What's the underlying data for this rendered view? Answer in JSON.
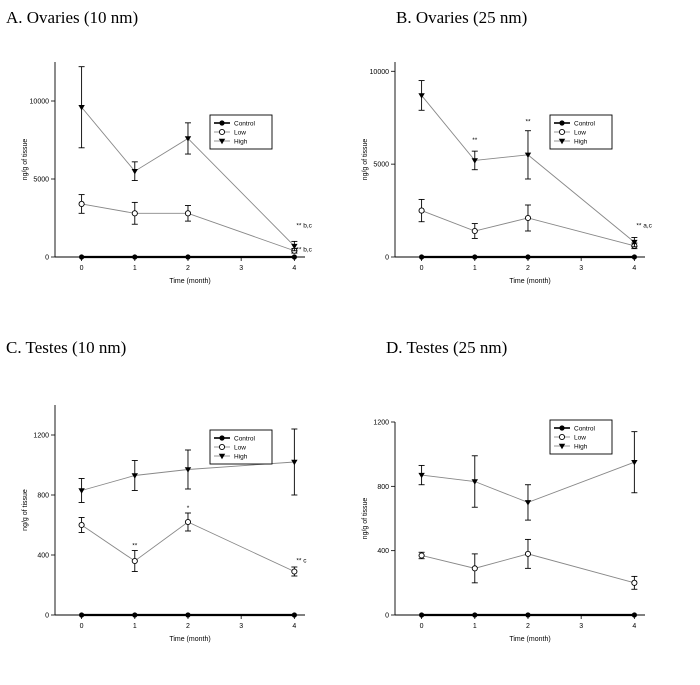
{
  "chart_data": [
    {
      "type": "line",
      "title": "A. Ovaries (10 nm)",
      "xlabel": "Time (month)",
      "ylabel": "ng/g of tissue",
      "xlim": [
        -0.5,
        4.2
      ],
      "ylim": [
        0,
        12500
      ],
      "xticks": [
        0,
        1,
        2,
        3,
        4
      ],
      "yticks": [
        0,
        5000,
        10000
      ],
      "legend": {
        "position": "top-right",
        "entries": [
          "Control",
          "Low",
          "High"
        ]
      },
      "series": [
        {
          "name": "Control",
          "marker": "circle-filled",
          "x": [
            0,
            1,
            2,
            4
          ],
          "y": [
            0,
            0,
            0,
            0
          ],
          "err": [
            0,
            0,
            0,
            0
          ]
        },
        {
          "name": "Low",
          "marker": "circle-open",
          "x": [
            0,
            1,
            2,
            4
          ],
          "y": [
            3400,
            2800,
            2800,
            400
          ],
          "err": [
            600,
            700,
            500,
            150
          ]
        },
        {
          "name": "High",
          "marker": "triangle-down",
          "x": [
            0,
            1,
            2,
            4
          ],
          "y": [
            9600,
            5500,
            7600,
            700
          ],
          "err": [
            2600,
            600,
            1000,
            300
          ]
        }
      ],
      "annotations": [
        {
          "text": "** b,c",
          "x": 4,
          "y": 1900,
          "anchor": "start"
        },
        {
          "text": "** b,c",
          "x": 4,
          "y": 350,
          "anchor": "start"
        }
      ]
    },
    {
      "type": "line",
      "title": "B. Ovaries (25 nm)",
      "xlabel": "Time (month)",
      "ylabel": "ng/g of tissue",
      "xlim": [
        -0.5,
        4.2
      ],
      "ylim": [
        0,
        10500
      ],
      "xticks": [
        0,
        1,
        2,
        3,
        4
      ],
      "yticks": [
        0,
        5000,
        10000
      ],
      "legend": {
        "position": "top-right",
        "entries": [
          "Control",
          "Low",
          "High"
        ]
      },
      "series": [
        {
          "name": "Control",
          "marker": "circle-filled",
          "x": [
            0,
            1,
            2,
            4
          ],
          "y": [
            0,
            0,
            0,
            0
          ],
          "err": [
            0,
            0,
            0,
            0
          ]
        },
        {
          "name": "Low",
          "marker": "circle-open",
          "x": [
            0,
            1,
            2,
            4
          ],
          "y": [
            2500,
            1400,
            2100,
            600
          ],
          "err": [
            600,
            400,
            700,
            150
          ]
        },
        {
          "name": "High",
          "marker": "triangle-down",
          "x": [
            0,
            1,
            2,
            4
          ],
          "y": [
            8700,
            5200,
            5500,
            800
          ],
          "err": [
            800,
            500,
            1300,
            250
          ]
        }
      ],
      "annotations": [
        {
          "text": "**",
          "x": 1,
          "y": 6200,
          "anchor": "middle"
        },
        {
          "text": "**",
          "x": 2,
          "y": 7200,
          "anchor": "middle"
        },
        {
          "text": "** a,c",
          "x": 4,
          "y": 1600,
          "anchor": "start"
        }
      ]
    },
    {
      "type": "line",
      "title": "C. Testes (10 nm)",
      "xlabel": "Time (month)",
      "ylabel": "ng/g of tissue",
      "xlim": [
        -0.5,
        4.2
      ],
      "ylim": [
        0,
        1400
      ],
      "xticks": [
        0,
        1,
        2,
        3,
        4
      ],
      "yticks": [
        0,
        400,
        800,
        1200
      ],
      "legend": {
        "position": "top-right",
        "entries": [
          "Control",
          "Low",
          "High"
        ]
      },
      "series": [
        {
          "name": "Control",
          "marker": "circle-filled",
          "x": [
            0,
            1,
            2,
            4
          ],
          "y": [
            0,
            0,
            0,
            0
          ],
          "err": [
            0,
            0,
            0,
            0
          ]
        },
        {
          "name": "Low",
          "marker": "circle-open",
          "x": [
            0,
            1,
            2,
            4
          ],
          "y": [
            600,
            360,
            620,
            290
          ],
          "err": [
            50,
            70,
            60,
            30
          ]
        },
        {
          "name": "High",
          "marker": "triangle-down",
          "x": [
            0,
            1,
            2,
            4
          ],
          "y": [
            830,
            930,
            970,
            1020
          ],
          "err": [
            80,
            100,
            130,
            220
          ]
        }
      ],
      "annotations": [
        {
          "text": "**",
          "x": 1,
          "y": 450,
          "anchor": "middle"
        },
        {
          "text": "*",
          "x": 2,
          "y": 700,
          "anchor": "middle"
        },
        {
          "text": "** c",
          "x": 4,
          "y": 350,
          "anchor": "start"
        }
      ]
    },
    {
      "type": "line",
      "title": "D. Testes (25 nm)",
      "xlabel": "Time (month)",
      "ylabel": "ng/g of tissue",
      "xlim": [
        -0.5,
        4.2
      ],
      "ylim": [
        0,
        1200
      ],
      "xticks": [
        0,
        1,
        2,
        3,
        4
      ],
      "yticks": [
        0,
        400,
        800,
        1200
      ],
      "legend": {
        "position": "top-right",
        "entries": [
          "Control",
          "Low",
          "High"
        ]
      },
      "series": [
        {
          "name": "Control",
          "marker": "circle-filled",
          "x": [
            0,
            1,
            2,
            4
          ],
          "y": [
            0,
            0,
            0,
            0
          ],
          "err": [
            0,
            0,
            0,
            0
          ]
        },
        {
          "name": "Low",
          "marker": "circle-open",
          "x": [
            0,
            1,
            2,
            4
          ],
          "y": [
            370,
            290,
            380,
            200
          ],
          "err": [
            20,
            90,
            90,
            40
          ]
        },
        {
          "name": "High",
          "marker": "triangle-down",
          "x": [
            0,
            1,
            2,
            4
          ],
          "y": [
            870,
            830,
            700,
            950
          ],
          "err": [
            60,
            160,
            110,
            190
          ]
        }
      ],
      "annotations": []
    }
  ]
}
